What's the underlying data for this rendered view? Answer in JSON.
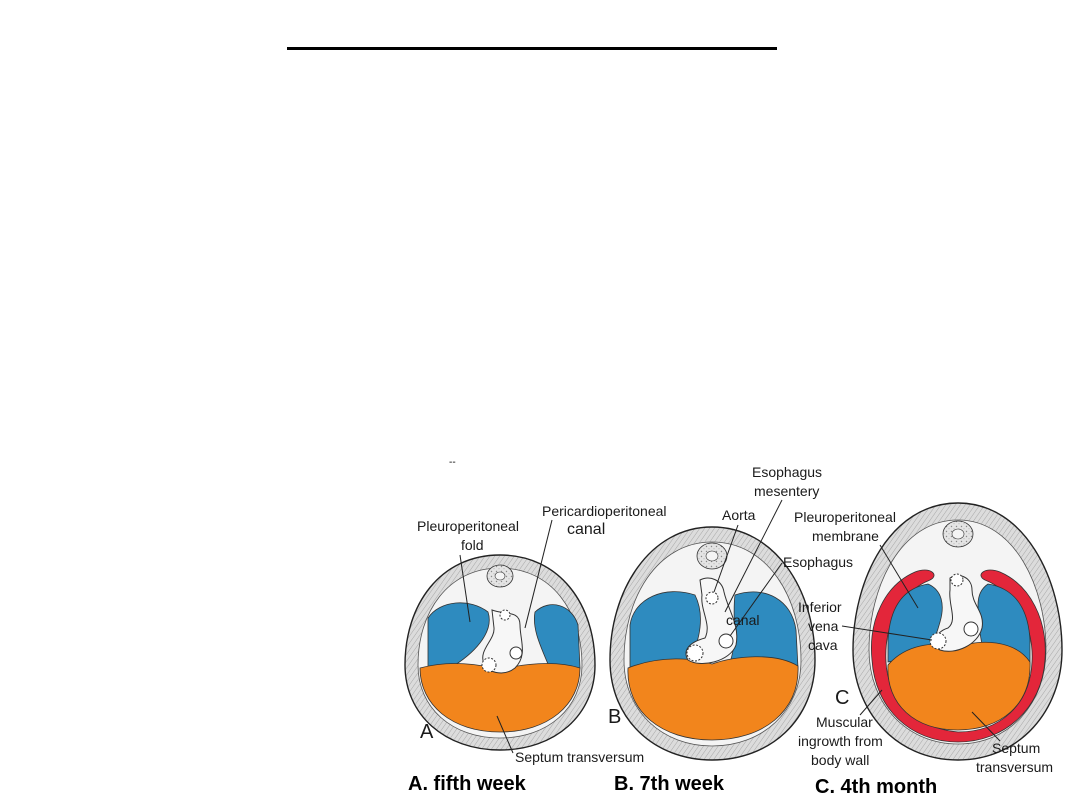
{
  "decor": {
    "dash": "--"
  },
  "colors": {
    "pleural": "#2e8bbf",
    "septum": "#f2851c",
    "muscle": "#e3263a",
    "wall": "#e2e2e2"
  },
  "panel_a": {
    "letter": "A",
    "pleuroperitoneal_fold": [
      "Pleuroperitoneal",
      "fold"
    ],
    "pericardioperitoneal": "Pericardioperitoneal",
    "canal": "canal",
    "septum_transversum": "Septum transversum",
    "caption": "A. fifth week"
  },
  "panel_b": {
    "letter": "B",
    "esophagus_mesentery": [
      "Esophagus",
      "mesentery"
    ],
    "aorta": "Aorta",
    "esophagus": "Esophagus",
    "canal": "canal",
    "caption": "B. 7th week"
  },
  "panel_c": {
    "letter": "C",
    "pleuroperitoneal_membrane": [
      "Pleuroperitoneal",
      "membrane"
    ],
    "inferior_vena_cava": [
      "Inferior",
      "vena",
      "cava"
    ],
    "muscular_ingrowth": [
      "Muscular",
      "ingrowth from",
      "body wall"
    ],
    "septum_transversum": [
      "Septum",
      "transversum"
    ],
    "caption": "C. 4th month"
  }
}
